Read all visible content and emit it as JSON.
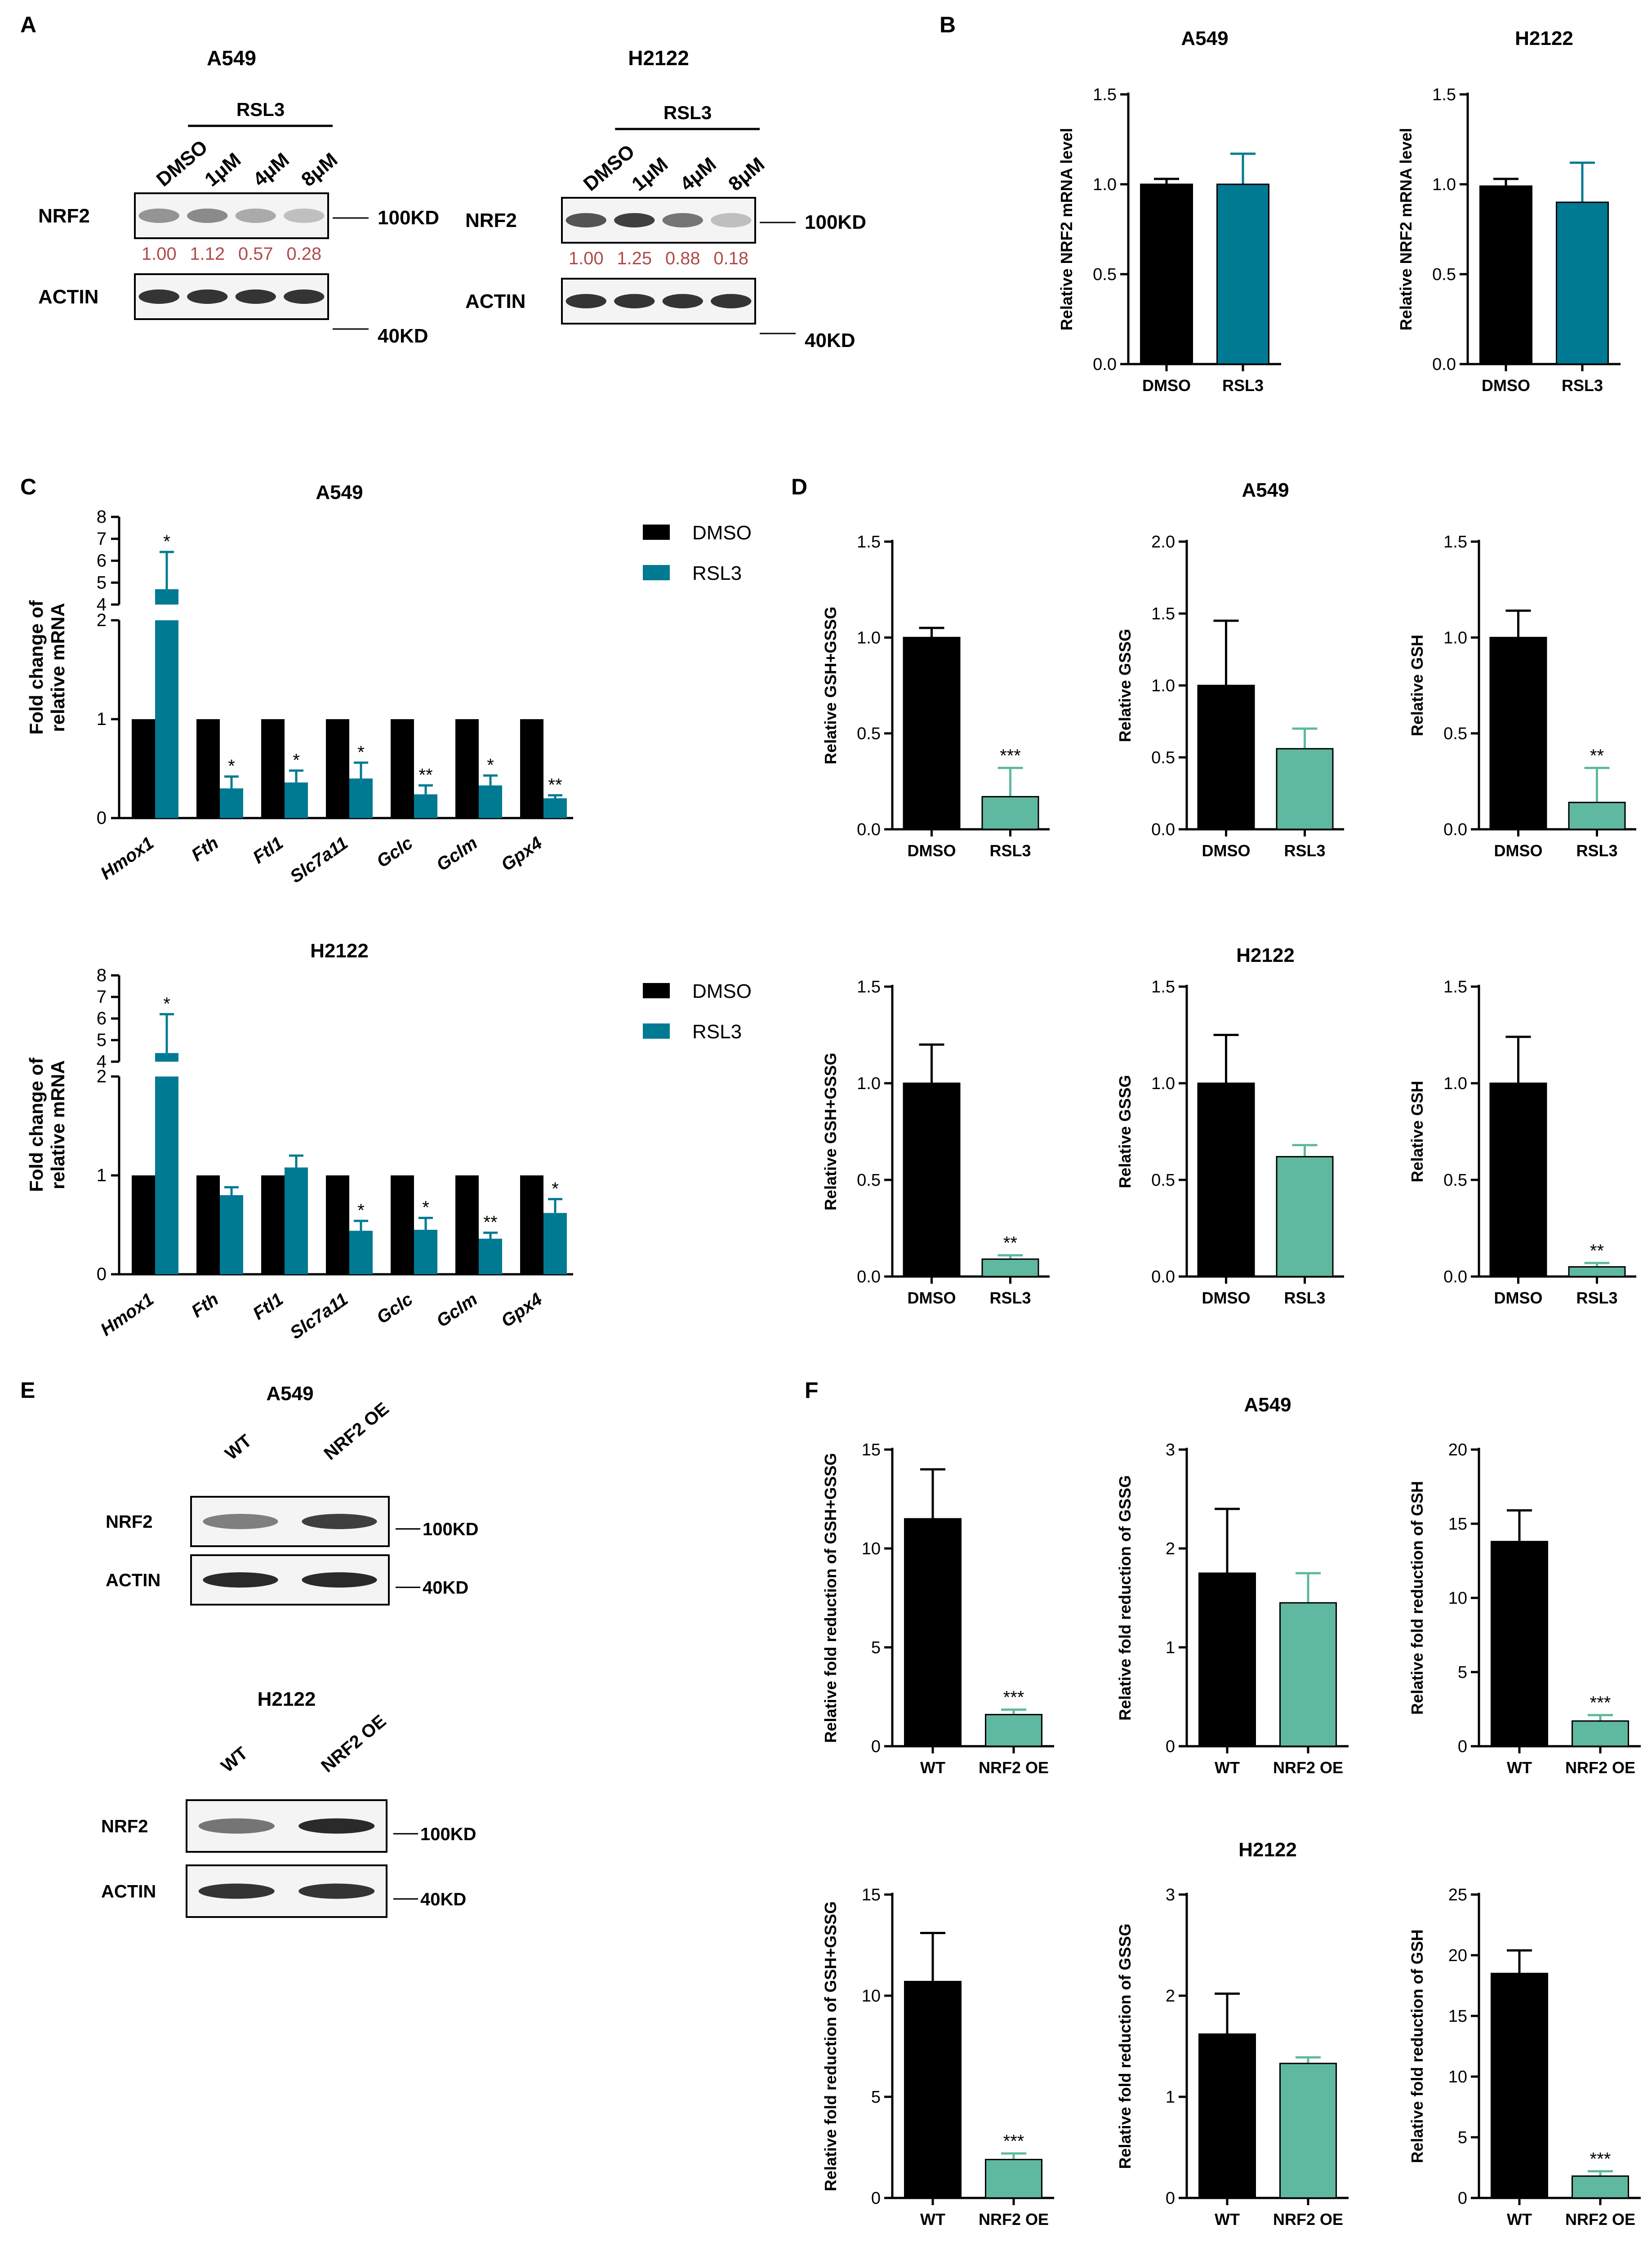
{
  "colors": {
    "dmso": "#000000",
    "rsl3_teal": "#007a92",
    "green": "#5fb8a0",
    "band": "#1f1f1f",
    "quant_text": "#b04a4a",
    "axis": "#000000"
  },
  "panels": {
    "A": {
      "letter": "A",
      "blots": [
        {
          "cell_line": "A549",
          "treatment_label": "RSL3",
          "lanes": [
            "DMSO",
            "1μM",
            "4μM",
            "8μM"
          ],
          "rows": [
            {
              "name": "NRF2",
              "size": "100KD",
              "intensities": [
                0.45,
                0.5,
                0.35,
                0.25
              ]
            },
            {
              "name": "ACTIN",
              "size": "40KD",
              "intensities": [
                0.9,
                0.9,
                0.9,
                0.9
              ]
            }
          ],
          "quant": [
            "1.00",
            "1.12",
            "0.57",
            "0.28"
          ]
        },
        {
          "cell_line": "H2122",
          "treatment_label": "RSL3",
          "lanes": [
            "DMSO",
            "1μM",
            "4μM",
            "8μM"
          ],
          "rows": [
            {
              "name": "NRF2",
              "size": "100KD",
              "intensities": [
                0.75,
                0.85,
                0.6,
                0.25
              ]
            },
            {
              "name": "ACTIN",
              "size": "40KD",
              "intensities": [
                0.9,
                0.9,
                0.9,
                0.9
              ]
            }
          ],
          "quant": [
            "1.00",
            "1.25",
            "0.88",
            "0.18"
          ]
        }
      ]
    },
    "B": {
      "letter": "B"
    },
    "C": {
      "letter": "C",
      "legend": [
        "DMSO",
        "RSL3"
      ]
    },
    "D": {
      "letter": "D"
    },
    "E": {
      "letter": "E",
      "blots": [
        {
          "cell_line": "A549",
          "lanes": [
            "WT",
            "NRF2 OE"
          ],
          "rows": [
            {
              "name": "NRF2",
              "size": "100KD",
              "intensities": [
                0.55,
                0.85
              ]
            },
            {
              "name": "ACTIN",
              "size": "40KD",
              "intensities": [
                0.95,
                0.95
              ]
            }
          ]
        },
        {
          "cell_line": "H2122",
          "lanes": [
            "WT",
            "NRF2 OE"
          ],
          "rows": [
            {
              "name": "NRF2",
              "size": "100KD",
              "intensities": [
                0.6,
                0.95
              ]
            },
            {
              "name": "ACTIN",
              "size": "40KD",
              "intensities": [
                0.9,
                0.9
              ]
            }
          ]
        }
      ]
    },
    "F": {
      "letter": "F"
    }
  },
  "chart_data": [
    {
      "id": "B1",
      "type": "bar",
      "title": "A549",
      "ylabel": "Relative NRF2 mRNA level",
      "categories": [
        "DMSO",
        "RSL3"
      ],
      "values": [
        1.0,
        1.0
      ],
      "errors": [
        0.03,
        0.17
      ],
      "colors": [
        "dmso",
        "rsl3_teal"
      ],
      "ylim": [
        0,
        1.5
      ],
      "ticks": [
        0.0,
        0.5,
        1.0,
        1.5
      ],
      "sig": [
        "",
        ""
      ]
    },
    {
      "id": "B2",
      "type": "bar",
      "title": "H2122",
      "ylabel": "Relative NRF2 mRNA level",
      "categories": [
        "DMSO",
        "RSL3"
      ],
      "values": [
        0.99,
        0.9
      ],
      "errors": [
        0.04,
        0.22
      ],
      "colors": [
        "dmso",
        "rsl3_teal"
      ],
      "ylim": [
        0,
        1.5
      ],
      "ticks": [
        0.0,
        0.5,
        1.0,
        1.5
      ],
      "sig": [
        "",
        ""
      ]
    },
    {
      "id": "C1",
      "type": "bar",
      "title": "A549",
      "ylabel": "Fold change of relative mRNA",
      "categories": [
        "Hmox1",
        "Fth",
        "Ftl1",
        "Slc7a11",
        "Gclc",
        "Gclm",
        "Gpx4"
      ],
      "series": [
        {
          "name": "DMSO",
          "values": [
            1,
            1,
            1,
            1,
            1,
            1,
            1
          ],
          "errors": [
            0,
            0,
            0,
            0,
            0,
            0,
            0
          ]
        },
        {
          "name": "RSL3",
          "values": [
            4.7,
            0.3,
            0.36,
            0.4,
            0.24,
            0.33,
            0.2
          ],
          "errors": [
            1.7,
            0.12,
            0.12,
            0.16,
            0.09,
            0.1,
            0.03
          ]
        }
      ],
      "sig": [
        "*",
        "*",
        "*",
        "*",
        "**",
        "*",
        "**"
      ],
      "broken_axis": {
        "lower": [
          0,
          2
        ],
        "upper": [
          4,
          8
        ]
      },
      "ticks": [
        0,
        1,
        2,
        4,
        5,
        6,
        7,
        8
      ]
    },
    {
      "id": "C2",
      "type": "bar",
      "title": "H2122",
      "ylabel": "Fold change of relative mRNA",
      "categories": [
        "Hmox1",
        "Fth",
        "Ftl1",
        "Slc7a11",
        "Gclc",
        "Gclm",
        "Gpx4"
      ],
      "series": [
        {
          "name": "DMSO",
          "values": [
            1,
            1,
            1,
            1,
            1,
            1,
            1
          ],
          "errors": [
            0,
            0,
            0,
            0,
            0,
            0,
            0
          ]
        },
        {
          "name": "RSL3",
          "values": [
            4.4,
            0.8,
            1.08,
            0.44,
            0.45,
            0.36,
            0.62
          ],
          "errors": [
            1.8,
            0.08,
            0.12,
            0.1,
            0.12,
            0.06,
            0.14
          ]
        }
      ],
      "sig": [
        "*",
        "",
        "",
        "*",
        "*",
        "**",
        "*"
      ],
      "broken_axis": {
        "lower": [
          0,
          2
        ],
        "upper": [
          4,
          8
        ]
      },
      "ticks": [
        0,
        1,
        2,
        4,
        5,
        6,
        7,
        8
      ]
    },
    {
      "id": "D1",
      "type": "bar",
      "ylabel": "Relative GSH+GSSG",
      "categories": [
        "DMSO",
        "RSL3"
      ],
      "values": [
        1.0,
        0.17
      ],
      "errors": [
        0.05,
        0.15
      ],
      "colors": [
        "dmso",
        "green"
      ],
      "ylim": [
        0,
        1.5
      ],
      "ticks": [
        0.0,
        0.5,
        1.0,
        1.5
      ],
      "sig": [
        "",
        "***"
      ]
    },
    {
      "id": "D2",
      "type": "bar",
      "title": "A549",
      "ylabel": "Relative GSSG",
      "categories": [
        "DMSO",
        "RSL3"
      ],
      "values": [
        1.0,
        0.56
      ],
      "errors": [
        0.45,
        0.14
      ],
      "colors": [
        "dmso",
        "green"
      ],
      "ylim": [
        0,
        2.0
      ],
      "ticks": [
        0.0,
        0.5,
        1.0,
        1.5,
        2.0
      ],
      "sig": [
        "",
        ""
      ]
    },
    {
      "id": "D3",
      "type": "bar",
      "ylabel": "Relative GSH",
      "categories": [
        "DMSO",
        "RSL3"
      ],
      "values": [
        1.0,
        0.14
      ],
      "errors": [
        0.14,
        0.18
      ],
      "colors": [
        "dmso",
        "green"
      ],
      "ylim": [
        0,
        1.5
      ],
      "ticks": [
        0.0,
        0.5,
        1.0,
        1.5
      ],
      "sig": [
        "",
        "**"
      ]
    },
    {
      "id": "D4",
      "type": "bar",
      "ylabel": "Relative GSH+GSSG",
      "categories": [
        "DMSO",
        "RSL3"
      ],
      "values": [
        1.0,
        0.09
      ],
      "errors": [
        0.2,
        0.02
      ],
      "colors": [
        "dmso",
        "green"
      ],
      "ylim": [
        0,
        1.5
      ],
      "ticks": [
        0.0,
        0.5,
        1.0,
        1.5
      ],
      "sig": [
        "",
        "**"
      ]
    },
    {
      "id": "D5",
      "type": "bar",
      "title": "H2122",
      "ylabel": "Relative GSSG",
      "categories": [
        "DMSO",
        "RSL3"
      ],
      "values": [
        1.0,
        0.62
      ],
      "errors": [
        0.25,
        0.06
      ],
      "colors": [
        "dmso",
        "green"
      ],
      "ylim": [
        0,
        1.5
      ],
      "ticks": [
        0.0,
        0.5,
        1.0,
        1.5
      ],
      "sig": [
        "",
        ""
      ]
    },
    {
      "id": "D6",
      "type": "bar",
      "ylabel": "Relative GSH",
      "categories": [
        "DMSO",
        "RSL3"
      ],
      "values": [
        1.0,
        0.05
      ],
      "errors": [
        0.24,
        0.02
      ],
      "colors": [
        "dmso",
        "green"
      ],
      "ylim": [
        0,
        1.5
      ],
      "ticks": [
        0.0,
        0.5,
        1.0,
        1.5
      ],
      "sig": [
        "",
        "**"
      ]
    },
    {
      "id": "F1",
      "type": "bar",
      "ylabel": "Relative fold reduction of GSH+GSSG",
      "categories": [
        "WT",
        "NRF2 OE"
      ],
      "values": [
        11.5,
        1.6
      ],
      "errors": [
        2.5,
        0.25
      ],
      "colors": [
        "dmso",
        "green"
      ],
      "ylim": [
        0,
        15
      ],
      "ticks": [
        0,
        5,
        10,
        15
      ],
      "sig": [
        "",
        "***"
      ]
    },
    {
      "id": "F2",
      "type": "bar",
      "title": "A549",
      "ylabel": "Relative fold reduction of GSSG",
      "categories": [
        "WT",
        "NRF2 OE"
      ],
      "values": [
        1.75,
        1.45
      ],
      "errors": [
        0.65,
        0.3
      ],
      "colors": [
        "dmso",
        "green"
      ],
      "ylim": [
        0,
        3
      ],
      "ticks": [
        0,
        1,
        2,
        3
      ],
      "sig": [
        "",
        ""
      ]
    },
    {
      "id": "F3",
      "type": "bar",
      "ylabel": "Relative fold reduction of GSH",
      "categories": [
        "WT",
        "NRF2 OE"
      ],
      "values": [
        13.8,
        1.7
      ],
      "errors": [
        2.1,
        0.4
      ],
      "colors": [
        "dmso",
        "green"
      ],
      "ylim": [
        0,
        20
      ],
      "ticks": [
        0,
        5,
        10,
        15,
        20
      ],
      "sig": [
        "",
        "***"
      ]
    },
    {
      "id": "F4",
      "type": "bar",
      "ylabel": "Relative fold reduction of GSH+GSSG",
      "categories": [
        "WT",
        "NRF2 OE"
      ],
      "values": [
        10.7,
        1.9
      ],
      "errors": [
        2.4,
        0.3
      ],
      "colors": [
        "dmso",
        "green"
      ],
      "ylim": [
        0,
        15
      ],
      "ticks": [
        0,
        5,
        10,
        15
      ],
      "sig": [
        "",
        "***"
      ]
    },
    {
      "id": "F5",
      "type": "bar",
      "title": "H2122",
      "ylabel": "Relative fold reduction of GSSG",
      "categories": [
        "WT",
        "NRF2 OE"
      ],
      "values": [
        1.62,
        1.33
      ],
      "errors": [
        0.4,
        0.06
      ],
      "colors": [
        "dmso",
        "green"
      ],
      "ylim": [
        0,
        3
      ],
      "ticks": [
        0,
        1,
        2,
        3
      ],
      "sig": [
        "",
        ""
      ]
    },
    {
      "id": "F6",
      "type": "bar",
      "ylabel": "Relative fold reduction of GSH",
      "categories": [
        "WT",
        "NRF2 OE"
      ],
      "values": [
        18.5,
        1.8
      ],
      "errors": [
        1.9,
        0.4
      ],
      "colors": [
        "dmso",
        "green"
      ],
      "ylim": [
        0,
        25
      ],
      "ticks": [
        0,
        5,
        10,
        15,
        20,
        25
      ],
      "sig": [
        "",
        "***"
      ]
    }
  ]
}
